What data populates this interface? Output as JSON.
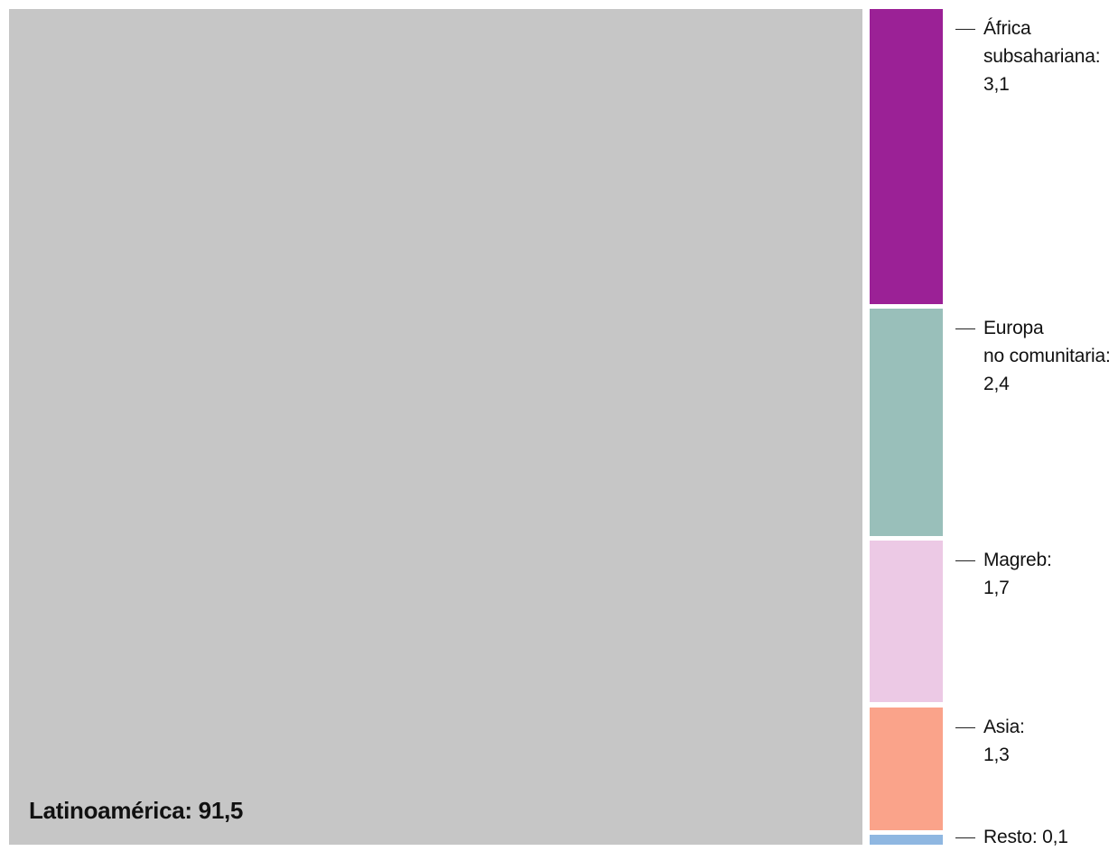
{
  "chart_data": {
    "type": "treemap",
    "title": "",
    "items": [
      {
        "name": "Latinoamérica",
        "value": 91.5,
        "color": "#c6c6c6",
        "label_lines": [
          "Latinoamérica: 91,5"
        ]
      },
      {
        "name": "África subsahariana",
        "value": 3.1,
        "color": "#9b2196",
        "label_lines": [
          "África",
          "subsahariana:",
          "3,1"
        ]
      },
      {
        "name": "Europa no comunitaria",
        "value": 2.4,
        "color": "#99bfba",
        "label_lines": [
          "Europa",
          "no comunitaria:",
          "2,4"
        ]
      },
      {
        "name": "Magreb",
        "value": 1.7,
        "color": "#ecc9e5",
        "label_lines": [
          "Magreb:",
          "1,7"
        ]
      },
      {
        "name": "Asia",
        "value": 1.3,
        "color": "#faa38a",
        "label_lines": [
          "Asia:",
          "1,3"
        ]
      },
      {
        "name": "Resto",
        "value": 0.1,
        "color": "#8fb7e1",
        "label_lines": [
          "Resto: 0,1"
        ]
      }
    ]
  }
}
